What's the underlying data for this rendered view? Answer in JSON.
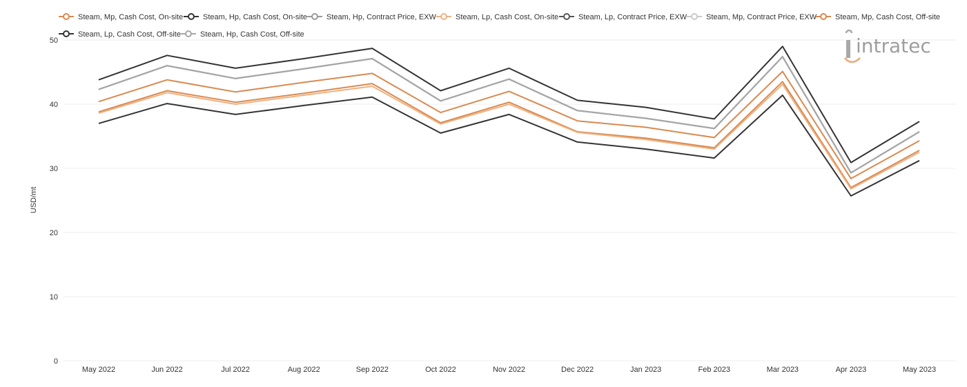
{
  "chart_data": {
    "type": "line",
    "title": "",
    "xlabel": "",
    "ylabel": "USD/mt",
    "ylim": [
      0,
      50
    ],
    "yticks": [
      0,
      10,
      20,
      30,
      40,
      50
    ],
    "grid": true,
    "legend_position": "top",
    "categories": [
      "May 2022",
      "Jun 2022",
      "Jul 2022",
      "Aug 2022",
      "Sep 2022",
      "Oct 2022",
      "Nov 2022",
      "Dec 2022",
      "Jan 2023",
      "Feb 2023",
      "Mar 2023",
      "Apr 2023",
      "May 2023"
    ],
    "series": [
      {
        "name": "Steam, Mp, Cash Cost, On-site",
        "color": "#d9894f",
        "values": [
          38.8,
          42.1,
          40.3,
          41.7,
          43.2,
          37.1,
          40.3,
          35.7,
          34.7,
          33.2,
          43.5,
          27.0,
          32.8
        ]
      },
      {
        "name": "Steam, Hp, Cash Cost, On-site",
        "color": "#333333",
        "values": [
          37.0,
          40.1,
          38.4,
          39.8,
          41.1,
          35.5,
          38.4,
          34.1,
          33.0,
          31.6,
          41.4,
          25.7,
          31.2
        ]
      },
      {
        "name": "Steam, Hp, Contract Price, EXW",
        "color": "#999999",
        "values": [
          42.3,
          46.0,
          44.0,
          45.5,
          47.1,
          40.5,
          43.9,
          39.0,
          37.8,
          36.2,
          47.4,
          29.3,
          35.7
        ]
      },
      {
        "name": "Steam, Lp, Cash Cost, On-site",
        "color": "#efb07f",
        "values": [
          38.6,
          41.8,
          40.0,
          41.4,
          42.8,
          36.9,
          40.0,
          35.6,
          34.5,
          33.0,
          43.1,
          26.8,
          32.5
        ]
      },
      {
        "name": "Steam, Lp, Contract Price, EXW",
        "color": "#555555",
        "values": [
          42.3,
          46.0,
          44.0,
          45.5,
          47.1,
          40.5,
          43.9,
          39.0,
          37.8,
          36.2,
          47.4,
          29.3,
          35.7
        ]
      },
      {
        "name": "Steam, Mp, Contract Price, EXW",
        "color": "#c9c9c9",
        "values": [
          42.3,
          46.0,
          44.0,
          45.5,
          47.1,
          40.5,
          43.9,
          39.0,
          37.8,
          36.2,
          47.4,
          29.3,
          35.7
        ]
      },
      {
        "name": "Steam, Mp, Cash Cost, Off-site",
        "color": "#d9894f",
        "values": [
          40.4,
          43.8,
          41.9,
          43.4,
          44.8,
          38.7,
          42.0,
          37.4,
          36.4,
          34.8,
          45.1,
          28.4,
          34.3
        ]
      },
      {
        "name": "Steam, Lp, Cash Cost, Off-site",
        "color": "#333333",
        "values": [
          43.8,
          47.6,
          45.6,
          47.1,
          48.7,
          42.1,
          45.6,
          40.6,
          39.5,
          37.7,
          49.0,
          30.9,
          37.3
        ]
      },
      {
        "name": "Steam, Hp, Cash Cost, Off-site",
        "color": "#a6a6a6",
        "values": [
          42.3,
          46.0,
          44.0,
          45.5,
          47.1,
          40.5,
          43.9,
          39.0,
          37.8,
          36.2,
          47.4,
          29.3,
          35.7
        ]
      }
    ]
  },
  "logo": {
    "text": "intratec",
    "icon": "intratec-logo-icon"
  }
}
